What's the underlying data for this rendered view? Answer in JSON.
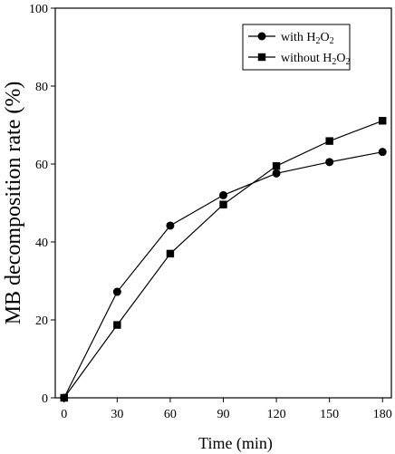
{
  "chart_data": {
    "type": "line",
    "xlabel": "Time (min)",
    "ylabel": "MB decomposition rate (%)",
    "xlim": [
      -5,
      185
    ],
    "ylim": [
      0,
      100
    ],
    "xticks": [
      0,
      30,
      60,
      90,
      120,
      150,
      180
    ],
    "yticks": [
      0,
      20,
      40,
      60,
      80,
      100
    ],
    "grid": false,
    "legend_position": "top-right",
    "x": [
      0,
      30,
      60,
      90,
      120,
      150,
      180
    ],
    "series": [
      {
        "name": "with H2O2",
        "legend_base": "with H",
        "legend_sub1": "2",
        "legend_mid": "O",
        "legend_sub2": "2",
        "marker": "circle",
        "values": [
          0,
          27.2,
          44.2,
          52.0,
          57.6,
          60.5,
          63.1
        ]
      },
      {
        "name": "without H2O2",
        "legend_base": "without H",
        "legend_sub1": "2",
        "legend_mid": "O",
        "legend_sub2": "2",
        "marker": "square",
        "values": [
          0,
          18.7,
          37.0,
          49.6,
          59.5,
          65.9,
          71.1
        ]
      }
    ],
    "colors": {
      "line": "#000000",
      "marker": "#000000"
    }
  }
}
